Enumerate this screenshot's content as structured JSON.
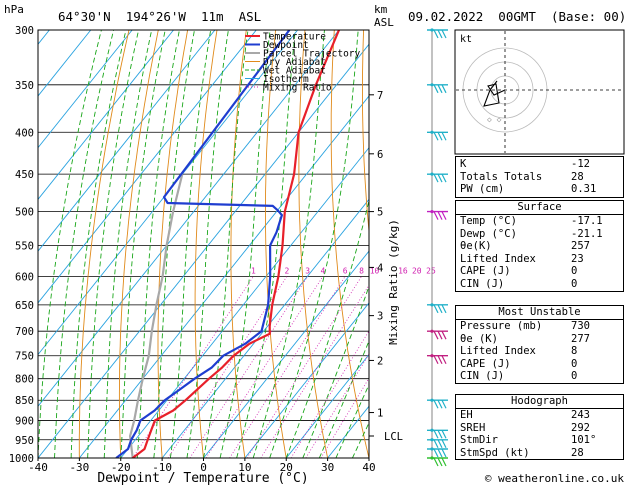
{
  "header": {
    "pressure_unit": "hPa",
    "location": "64°30'N  194°26'W  11m  ASL",
    "height_unit": "km",
    "height_unit2": "ASL",
    "datetime": "09.02.2022  00GMT  (Base: 00)"
  },
  "chart_data": {
    "type": "skew-T log-P",
    "xlabel": "Dewpoint / Temperature (°C)",
    "ylabel_right": "Mixing Ratio (g/kg)",
    "pressure_ticks": [
      300,
      350,
      400,
      450,
      500,
      550,
      600,
      650,
      700,
      750,
      800,
      850,
      900,
      950,
      1000
    ],
    "temperature_ticks": [
      -40,
      -30,
      -20,
      -10,
      0,
      10,
      20,
      30,
      40
    ],
    "xlim": [
      -40,
      40
    ],
    "ylim_hPa": [
      1000,
      300
    ],
    "km_ticks": [
      {
        "label": "7",
        "p": 360
      },
      {
        "label": "6",
        "p": 425
      },
      {
        "label": "5",
        "p": 500
      },
      {
        "label": "4",
        "p": 585
      },
      {
        "label": "3",
        "p": 670
      },
      {
        "label": "2",
        "p": 760
      },
      {
        "label": "1",
        "p": 880
      },
      {
        "label": "LCL",
        "p": 940
      }
    ],
    "mixing_ratio_labels": [
      "1",
      "2",
      "3",
      "4",
      "6",
      "8",
      "10",
      "16",
      "20",
      "25"
    ],
    "legend": [
      "Temperature",
      "Dewpoint",
      "Parcel Trajectory",
      "Dry Adiabat",
      "Wet Adiabat",
      "Isotherm",
      "Mixing Ratio"
    ],
    "series": [
      {
        "name": "Temperature",
        "color": "#e8202a",
        "points": [
          [
            1000,
            -17.1
          ],
          [
            975,
            -16
          ],
          [
            950,
            -17
          ],
          [
            925,
            -18
          ],
          [
            900,
            -19
          ],
          [
            875,
            -16.5
          ],
          [
            850,
            -15.5
          ],
          [
            800,
            -14
          ],
          [
            775,
            -13
          ],
          [
            750,
            -12.5
          ],
          [
            725,
            -11
          ],
          [
            705,
            -8
          ],
          [
            690,
            -9.5
          ],
          [
            650,
            -13
          ],
          [
            600,
            -17
          ],
          [
            550,
            -22
          ],
          [
            500,
            -28
          ],
          [
            450,
            -33
          ],
          [
            400,
            -40
          ],
          [
            350,
            -45
          ],
          [
            300,
            -50
          ]
        ]
      },
      {
        "name": "Dewpoint",
        "color": "#1f3dd0",
        "points": [
          [
            1000,
            -21.1
          ],
          [
            975,
            -20
          ],
          [
            950,
            -21
          ],
          [
            925,
            -21.5
          ],
          [
            900,
            -22.5
          ],
          [
            875,
            -21
          ],
          [
            850,
            -20.5
          ],
          [
            825,
            -19
          ],
          [
            800,
            -17.5
          ],
          [
            775,
            -15.5
          ],
          [
            750,
            -15
          ],
          [
            725,
            -12
          ],
          [
            700,
            -10.5
          ],
          [
            650,
            -14
          ],
          [
            600,
            -19
          ],
          [
            550,
            -25
          ],
          [
            530,
            -26
          ],
          [
            505,
            -28
          ],
          [
            498,
            -30
          ],
          [
            492,
            -32
          ],
          [
            488,
            -58
          ],
          [
            480,
            -60
          ],
          [
            300,
            -62
          ]
        ]
      },
      {
        "name": "Parcel Trajectory",
        "color": "#a8a8a8",
        "points": [
          [
            1000,
            -17.1
          ],
          [
            940,
            -22
          ],
          [
            900,
            -24
          ],
          [
            850,
            -27
          ],
          [
            800,
            -30
          ],
          [
            750,
            -33
          ],
          [
            700,
            -37
          ],
          [
            650,
            -41
          ],
          [
            600,
            -45
          ],
          [
            550,
            -50
          ],
          [
            500,
            -55
          ],
          [
            450,
            -60
          ]
        ]
      }
    ]
  },
  "hodograph": {
    "label": "kt"
  },
  "indices": {
    "k": {
      "label": "K",
      "value": "-12"
    },
    "tt": {
      "label": "Totals Totals",
      "value": "28"
    },
    "pw": {
      "label": "PW (cm)",
      "value": "0.31"
    }
  },
  "surface": {
    "title": "Surface",
    "temp": {
      "label": "Temp (°C)",
      "value": "-17.1"
    },
    "dewp": {
      "label": "Dewp (°C)",
      "value": "-21.1"
    },
    "thetae": {
      "label": "θe(K)",
      "value": "257"
    },
    "li": {
      "label": "Lifted Index",
      "value": "23"
    },
    "cape": {
      "label": "CAPE (J)",
      "value": "0"
    },
    "cin": {
      "label": "CIN (J)",
      "value": "0"
    }
  },
  "most_unstable": {
    "title": "Most Unstable",
    "pressure": {
      "label": "Pressure (mb)",
      "value": "730"
    },
    "thetae": {
      "label": "θe (K)",
      "value": "277"
    },
    "li": {
      "label": "Lifted Index",
      "value": "8"
    },
    "cape": {
      "label": "CAPE (J)",
      "value": "0"
    },
    "cin": {
      "label": "CIN (J)",
      "value": "0"
    }
  },
  "hodo_table": {
    "title": "Hodograph",
    "eh": {
      "label": "EH",
      "value": "243"
    },
    "sreh": {
      "label": "SREH",
      "value": "292"
    },
    "stmdir": {
      "label": "StmDir",
      "value": "101°"
    },
    "stmspd": {
      "label": "StmSpd (kt)",
      "value": "28"
    }
  },
  "footer": {
    "copyright": "© weatheronline.co.uk"
  },
  "colors": {
    "temperature": "#e8202a",
    "dewpoint": "#1f3dd0",
    "parcel": "#a8a8a8",
    "dry_adiabat": "#e08a1a",
    "wet_adiabat": "#19a619",
    "isotherm": "#2aa3e0",
    "mixing_ratio": "#d020b0",
    "wind_barbs": "#20b0c8"
  }
}
